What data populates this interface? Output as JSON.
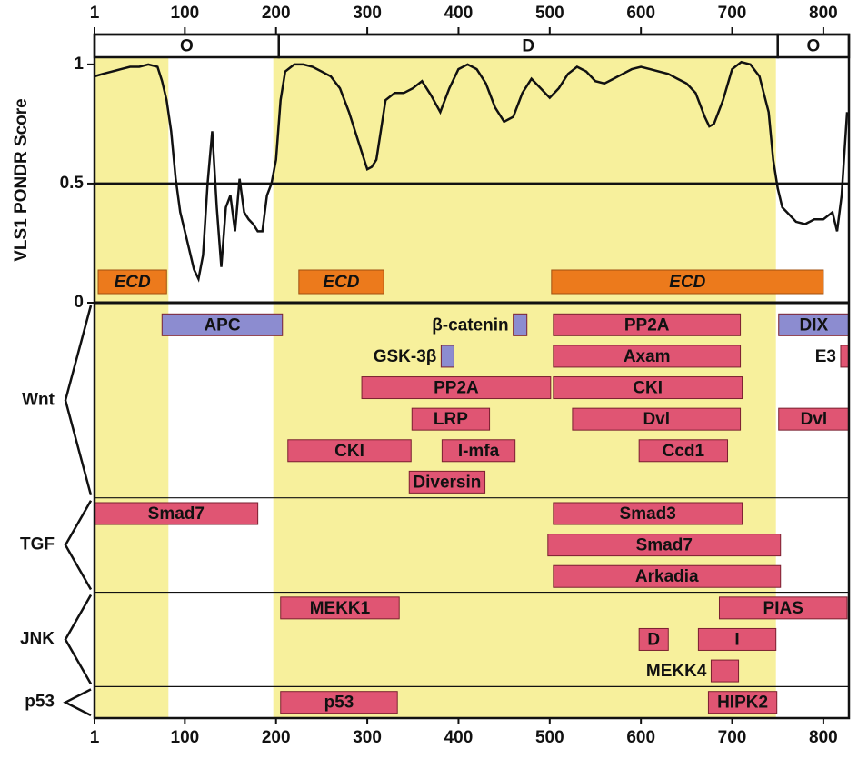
{
  "chart_data": {
    "type": "line",
    "y_label": "VLS1 PONDR Score",
    "xlim": [
      1,
      828
    ],
    "xticks": [
      1,
      100,
      200,
      300,
      400,
      500,
      600,
      700,
      800
    ],
    "ylim": [
      0,
      1.03
    ],
    "yticks": [
      0,
      0.5,
      1
    ],
    "shaded_regions": [
      [
        1,
        82
      ],
      [
        197,
        748
      ]
    ],
    "segments": [
      {
        "label": "O",
        "start": 1,
        "end": 203
      },
      {
        "label": "D",
        "start": 203,
        "end": 750
      },
      {
        "label": "O",
        "start": 750,
        "end": 828
      }
    ],
    "ecd": [
      {
        "label": "ECD",
        "start": 5,
        "end": 80
      },
      {
        "label": "ECD",
        "start": 225,
        "end": 318
      },
      {
        "label": "ECD",
        "start": 502,
        "end": 800
      }
    ],
    "x": [
      1,
      10,
      20,
      30,
      40,
      50,
      60,
      70,
      75,
      80,
      85,
      90,
      95,
      100,
      105,
      110,
      115,
      120,
      125,
      130,
      135,
      140,
      145,
      150,
      155,
      160,
      165,
      170,
      175,
      180,
      185,
      190,
      195,
      200,
      205,
      210,
      220,
      230,
      240,
      250,
      260,
      270,
      280,
      290,
      300,
      305,
      310,
      320,
      330,
      340,
      350,
      360,
      370,
      380,
      390,
      400,
      410,
      420,
      430,
      440,
      450,
      460,
      470,
      480,
      490,
      500,
      510,
      520,
      530,
      540,
      550,
      560,
      570,
      580,
      590,
      600,
      610,
      620,
      630,
      640,
      650,
      660,
      670,
      675,
      680,
      690,
      700,
      710,
      720,
      730,
      740,
      745,
      750,
      755,
      760,
      770,
      780,
      790,
      800,
      810,
      815,
      820,
      826
    ],
    "values": [
      0.95,
      0.96,
      0.97,
      0.98,
      0.99,
      0.99,
      1.0,
      0.99,
      0.93,
      0.85,
      0.72,
      0.52,
      0.38,
      0.3,
      0.22,
      0.14,
      0.1,
      0.2,
      0.5,
      0.72,
      0.4,
      0.15,
      0.4,
      0.45,
      0.3,
      0.52,
      0.38,
      0.35,
      0.33,
      0.3,
      0.3,
      0.45,
      0.5,
      0.6,
      0.85,
      0.97,
      1.0,
      1.0,
      0.99,
      0.97,
      0.95,
      0.9,
      0.8,
      0.68,
      0.56,
      0.57,
      0.6,
      0.85,
      0.88,
      0.88,
      0.9,
      0.93,
      0.87,
      0.8,
      0.9,
      0.98,
      1.0,
      0.98,
      0.92,
      0.82,
      0.76,
      0.78,
      0.88,
      0.94,
      0.9,
      0.86,
      0.9,
      0.96,
      0.99,
      0.97,
      0.93,
      0.92,
      0.94,
      0.96,
      0.98,
      0.99,
      0.98,
      0.97,
      0.96,
      0.94,
      0.92,
      0.88,
      0.78,
      0.74,
      0.75,
      0.85,
      0.98,
      1.01,
      1.0,
      0.95,
      0.8,
      0.6,
      0.48,
      0.4,
      0.38,
      0.34,
      0.33,
      0.35,
      0.35,
      0.38,
      0.3,
      0.45,
      0.8
    ],
    "color": "#111111",
    "groups": [
      {
        "name": "Wnt",
        "tracks": [
          [
            {
              "label": "APC",
              "start": 75,
              "end": 207,
              "color": "#8c8cd0"
            },
            {
              "label": "β-catenin",
              "start": 460,
              "end": 475,
              "color": "#8c8cd0"
            },
            {
              "label": "PP2A",
              "start": 504,
              "end": 709,
              "color": "#e05573"
            },
            {
              "label": "DIX",
              "start": 751,
              "end": 828,
              "color": "#8c8cd0"
            }
          ],
          [
            {
              "label": "GSK-3β",
              "start": 381,
              "end": 395,
              "color": "#8c8cd0"
            },
            {
              "label": "Axam",
              "start": 504,
              "end": 709,
              "color": "#e05573"
            },
            {
              "label": "E3",
              "start": 819,
              "end": 828,
              "color": "#e05573"
            }
          ],
          [
            {
              "label": "PP2A",
              "start": 294,
              "end": 501,
              "color": "#e05573"
            },
            {
              "label": "CKI",
              "start": 504,
              "end": 711,
              "color": "#e05573"
            }
          ],
          [
            {
              "label": "LRP",
              "start": 349,
              "end": 434,
              "color": "#e05573"
            },
            {
              "label": "Dvl",
              "start": 525,
              "end": 709,
              "color": "#e05573"
            },
            {
              "label": "Dvl",
              "start": 751,
              "end": 828,
              "color": "#e05573"
            }
          ],
          [
            {
              "label": "CKI",
              "start": 213,
              "end": 348,
              "color": "#e05573"
            },
            {
              "label": "I-mfa",
              "start": 382,
              "end": 462,
              "color": "#e05573"
            },
            {
              "label": "Ccd1",
              "start": 598,
              "end": 695,
              "color": "#e05573"
            }
          ],
          [
            {
              "label": "Diversin",
              "start": 346,
              "end": 429,
              "color": "#e05573"
            }
          ]
        ]
      },
      {
        "name": "TGF",
        "tracks": [
          [
            {
              "label": "Smad7",
              "start": 1,
              "end": 180,
              "color": "#e05573"
            },
            {
              "label": "Smad3",
              "start": 504,
              "end": 711,
              "color": "#e05573"
            }
          ],
          [
            {
              "label": "Smad7",
              "start": 498,
              "end": 753,
              "color": "#e05573"
            }
          ],
          [
            {
              "label": "Arkadia",
              "start": 504,
              "end": 753,
              "color": "#e05573"
            }
          ]
        ]
      },
      {
        "name": "JNK",
        "tracks": [
          [
            {
              "label": "MEKK1",
              "start": 205,
              "end": 335,
              "color": "#e05573"
            },
            {
              "label": "PIAS",
              "start": 686,
              "end": 826,
              "color": "#e05573"
            }
          ],
          [
            {
              "label": "D",
              "start": 598,
              "end": 630,
              "color": "#e05573"
            },
            {
              "label": "I",
              "start": 663,
              "end": 748,
              "color": "#e05573"
            }
          ],
          [
            {
              "label": "MEKK4",
              "start": 677,
              "end": 707,
              "color": "#e05573"
            }
          ]
        ]
      },
      {
        "name": "p53",
        "tracks": [
          [
            {
              "label": "p53",
              "start": 205,
              "end": 333,
              "color": "#e05573"
            },
            {
              "label": "HIPK2",
              "start": 674,
              "end": 749,
              "color": "#e05573"
            }
          ]
        ]
      }
    ]
  }
}
